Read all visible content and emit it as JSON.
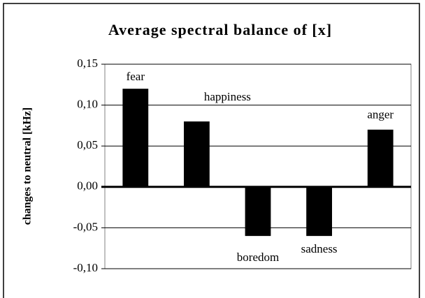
{
  "chart_data": {
    "type": "bar",
    "title": "Average spectral balance of [x]",
    "y_label": "changes to neutral [kHz]",
    "categories": [
      "fear",
      "happiness",
      "boredom",
      "sadness",
      "anger"
    ],
    "values": [
      0.12,
      0.08,
      -0.06,
      -0.06,
      0.07
    ],
    "color": "#000000",
    "ylim": [
      -0.1,
      0.15
    ],
    "yticks": [
      {
        "value": -0.1,
        "label": "-0,10"
      },
      {
        "value": -0.05,
        "label": "-0,05"
      },
      {
        "value": 0,
        "label": "0,00"
      },
      {
        "value": 0.05,
        "label": "0,05"
      },
      {
        "value": 0.1,
        "label": "0,10"
      },
      {
        "value": 0.15,
        "label": "0,15"
      }
    ],
    "grid": true
  }
}
